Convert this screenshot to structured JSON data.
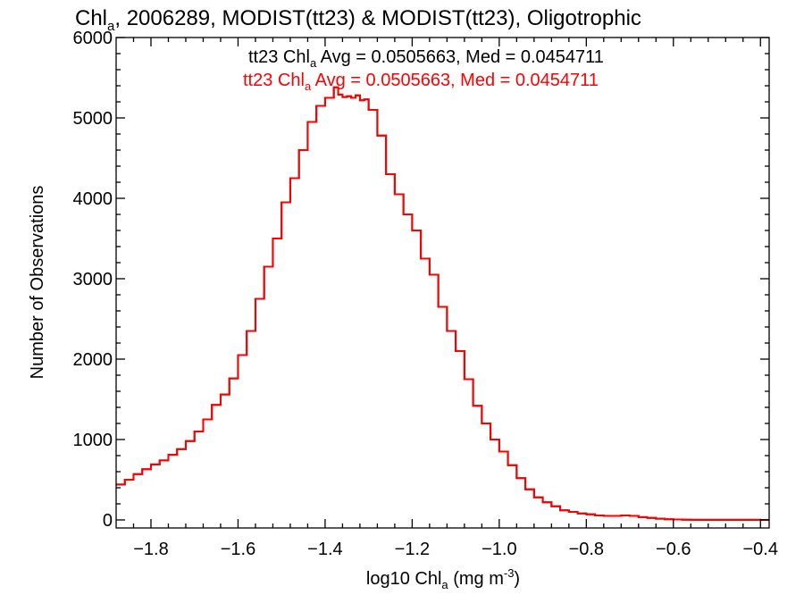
{
  "chart_data": {
    "type": "line",
    "title": {
      "prefix": "Chl",
      "sub": "a",
      "rest": ", 2006289, MODIST(tt23) & MODIST(tt23), Oligotrophic"
    },
    "xlabel": {
      "prefix": "log10 Chl",
      "sub": "a",
      "mid": " (mg m",
      "sup": "-3",
      "suffix": ")"
    },
    "ylabel": "Number of Observations",
    "xlim": [
      -1.88,
      -0.38
    ],
    "ylim": [
      -100,
      6000
    ],
    "x_ticks": [
      -1.8,
      -1.6,
      -1.4,
      -1.2,
      -1.0,
      -0.8,
      -0.6,
      -0.4
    ],
    "x_tick_labels": [
      "−1.8",
      "−1.6",
      "−1.4",
      "−1.2",
      "−1.0",
      "−0.8",
      "−0.6",
      "−0.4"
    ],
    "y_ticks": [
      0,
      1000,
      2000,
      3000,
      4000,
      5000,
      6000
    ],
    "y_tick_labels": [
      "0",
      "1000",
      "2000",
      "3000",
      "4000",
      "5000",
      "6000"
    ],
    "annotations": [
      {
        "prefix": "tt23 Chl",
        "sub": "a",
        "text": " Avg = 0.0505663, Med = 0.0454711",
        "color": "#000000"
      },
      {
        "prefix": "tt23 Chl",
        "sub": "a",
        "text": " Avg = 0.0505663, Med = 0.0454711",
        "color": "#ff0000"
      }
    ],
    "series": [
      {
        "color": "#000000",
        "x": [
          -1.88,
          -1.86,
          -1.84,
          -1.82,
          -1.8,
          -1.78,
          -1.76,
          -1.74,
          -1.72,
          -1.7,
          -1.68,
          -1.66,
          -1.64,
          -1.62,
          -1.6,
          -1.58,
          -1.56,
          -1.54,
          -1.52,
          -1.5,
          -1.48,
          -1.46,
          -1.44,
          -1.42,
          -1.4,
          -1.38,
          -1.37,
          -1.36,
          -1.35,
          -1.34,
          -1.33,
          -1.32,
          -1.31,
          -1.3,
          -1.28,
          -1.26,
          -1.24,
          -1.22,
          -1.2,
          -1.18,
          -1.16,
          -1.14,
          -1.12,
          -1.1,
          -1.08,
          -1.06,
          -1.04,
          -1.02,
          -1.0,
          -0.98,
          -0.96,
          -0.94,
          -0.92,
          -0.9,
          -0.88,
          -0.86,
          -0.84,
          -0.82,
          -0.8,
          -0.78,
          -0.76,
          -0.74,
          -0.72,
          -0.7,
          -0.68,
          -0.66,
          -0.64,
          -0.62,
          -0.6,
          -0.58,
          -0.56,
          -0.54,
          -0.52,
          -0.5,
          -0.48,
          -0.46,
          -0.44,
          -0.42,
          -0.4,
          -0.38
        ],
        "y": [
          440,
          500,
          570,
          630,
          690,
          740,
          810,
          880,
          980,
          1100,
          1250,
          1430,
          1560,
          1760,
          2050,
          2350,
          2750,
          3150,
          3500,
          3950,
          4250,
          4600,
          4950,
          5150,
          5250,
          5380,
          5290,
          5260,
          5270,
          5250,
          5280,
          5220,
          5230,
          5100,
          4780,
          4300,
          4050,
          3800,
          3600,
          3250,
          3050,
          2650,
          2350,
          2100,
          1750,
          1420,
          1200,
          1000,
          850,
          680,
          520,
          380,
          280,
          220,
          170,
          120,
          100,
          80,
          70,
          55,
          50,
          50,
          55,
          50,
          35,
          25,
          15,
          8,
          5,
          3,
          2,
          2,
          2,
          1,
          1,
          1,
          1,
          1,
          0,
          0
        ]
      },
      {
        "color": "#ff0000",
        "x": [
          -1.88,
          -1.86,
          -1.84,
          -1.82,
          -1.8,
          -1.78,
          -1.76,
          -1.74,
          -1.72,
          -1.7,
          -1.68,
          -1.66,
          -1.64,
          -1.62,
          -1.6,
          -1.58,
          -1.56,
          -1.54,
          -1.52,
          -1.5,
          -1.48,
          -1.46,
          -1.44,
          -1.42,
          -1.4,
          -1.38,
          -1.37,
          -1.36,
          -1.35,
          -1.34,
          -1.33,
          -1.32,
          -1.31,
          -1.3,
          -1.28,
          -1.26,
          -1.24,
          -1.22,
          -1.2,
          -1.18,
          -1.16,
          -1.14,
          -1.12,
          -1.1,
          -1.08,
          -1.06,
          -1.04,
          -1.02,
          -1.0,
          -0.98,
          -0.96,
          -0.94,
          -0.92,
          -0.9,
          -0.88,
          -0.86,
          -0.84,
          -0.82,
          -0.8,
          -0.78,
          -0.76,
          -0.74,
          -0.72,
          -0.7,
          -0.68,
          -0.66,
          -0.64,
          -0.62,
          -0.6,
          -0.58,
          -0.56,
          -0.54,
          -0.52,
          -0.5,
          -0.48,
          -0.46,
          -0.44,
          -0.42,
          -0.4,
          -0.38
        ],
        "y": [
          440,
          500,
          570,
          630,
          690,
          740,
          810,
          880,
          980,
          1100,
          1250,
          1430,
          1560,
          1760,
          2050,
          2350,
          2750,
          3150,
          3500,
          3950,
          4250,
          4600,
          4950,
          5150,
          5250,
          5380,
          5290,
          5260,
          5270,
          5250,
          5280,
          5220,
          5230,
          5100,
          4780,
          4300,
          4050,
          3800,
          3600,
          3250,
          3050,
          2650,
          2350,
          2100,
          1750,
          1420,
          1200,
          1000,
          850,
          680,
          520,
          380,
          280,
          220,
          170,
          120,
          100,
          80,
          70,
          55,
          50,
          50,
          55,
          50,
          35,
          25,
          15,
          8,
          5,
          3,
          2,
          2,
          2,
          1,
          1,
          1,
          1,
          1,
          0,
          0
        ]
      }
    ]
  }
}
